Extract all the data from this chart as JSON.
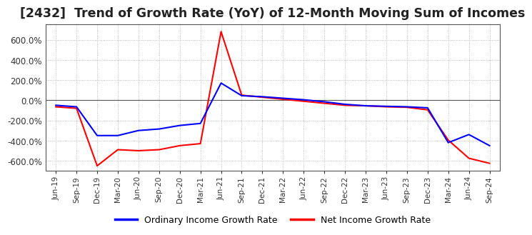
{
  "title": "[2432]  Trend of Growth Rate (YoY) of 12-Month Moving Sum of Incomes",
  "title_fontsize": 12.5,
  "ylim": [
    -700,
    750
  ],
  "yticks": [
    -600,
    -400,
    -200,
    0,
    200,
    400,
    600
  ],
  "background_color": "#ffffff",
  "plot_bg_color": "#ffffff",
  "grid_color": "#aaaaaa",
  "border_color": "#555555",
  "legend_labels": [
    "Ordinary Income Growth Rate",
    "Net Income Growth Rate"
  ],
  "legend_colors": [
    "#0000ff",
    "#ff0000"
  ],
  "x_labels": [
    "Jun-19",
    "Sep-19",
    "Dec-19",
    "Mar-20",
    "Jun-20",
    "Sep-20",
    "Dec-20",
    "Mar-21",
    "Jun-21",
    "Sep-21",
    "Dec-21",
    "Mar-22",
    "Jun-22",
    "Sep-22",
    "Dec-22",
    "Mar-23",
    "Jun-23",
    "Sep-23",
    "Dec-23",
    "Mar-24",
    "Jun-24",
    "Sep-24"
  ],
  "ordinary_income": [
    -50,
    -65,
    -350,
    -350,
    -300,
    -285,
    -250,
    -230,
    170,
    45,
    35,
    20,
    5,
    -15,
    -40,
    -55,
    -60,
    -65,
    -75,
    -420,
    -340,
    -450
  ],
  "net_income": [
    -65,
    -80,
    -650,
    -490,
    -500,
    -490,
    -450,
    -430,
    680,
    50,
    30,
    10,
    -10,
    -30,
    -50,
    -55,
    -65,
    -70,
    -95,
    -395,
    -575,
    -625
  ]
}
